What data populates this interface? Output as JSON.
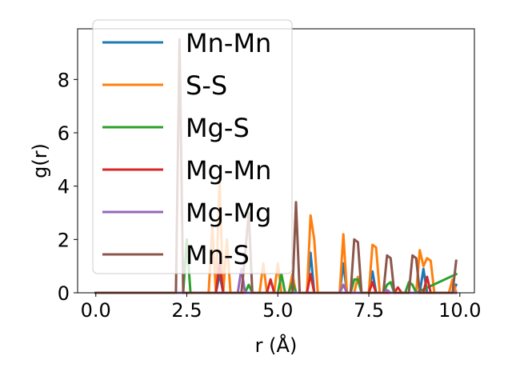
{
  "chart_data": {
    "type": "line",
    "title": "",
    "xlabel": "r (Å)",
    "ylabel": "g(r)",
    "xlim": [
      -0.5,
      10.4
    ],
    "ylim": [
      0,
      9.9
    ],
    "xticks": [
      0.0,
      2.5,
      5.0,
      7.5,
      10.0
    ],
    "xtick_labels": [
      "0.0",
      "2.5",
      "5.0",
      "7.5",
      "10.0"
    ],
    "yticks": [
      0,
      2,
      4,
      6,
      8
    ],
    "ytick_labels": [
      "0",
      "2",
      "4",
      "6",
      "8"
    ],
    "grid": false,
    "legend_position": "upper-left",
    "series": [
      {
        "name": "Mn-Mn",
        "color": "#1f77b4",
        "points": [
          [
            0,
            0
          ],
          [
            3.3,
            0
          ],
          [
            3.4,
            0.7
          ],
          [
            3.5,
            0
          ],
          [
            5.8,
            0
          ],
          [
            5.9,
            1.5
          ],
          [
            6.0,
            0
          ],
          [
            6.7,
            0
          ],
          [
            6.8,
            1.1
          ],
          [
            6.9,
            0
          ],
          [
            7.5,
            0
          ],
          [
            7.6,
            0.8
          ],
          [
            7.7,
            0
          ],
          [
            8.9,
            0
          ],
          [
            9.0,
            0.9
          ],
          [
            9.1,
            0
          ],
          [
            9.8,
            0
          ],
          [
            9.9,
            0.3
          ]
        ]
      },
      {
        "name": "S-S",
        "color": "#ff7f0e",
        "points": [
          [
            0,
            0
          ],
          [
            3.1,
            0
          ],
          [
            3.2,
            2.5
          ],
          [
            3.3,
            0
          ],
          [
            3.4,
            4.2
          ],
          [
            3.5,
            0
          ],
          [
            3.6,
            2.0
          ],
          [
            3.7,
            0
          ],
          [
            4.5,
            0
          ],
          [
            4.6,
            1.1
          ],
          [
            4.7,
            0
          ],
          [
            4.9,
            0
          ],
          [
            5.0,
            1.1
          ],
          [
            5.1,
            0
          ],
          [
            5.3,
            0
          ],
          [
            5.4,
            0.7
          ],
          [
            5.5,
            0
          ],
          [
            5.8,
            0
          ],
          [
            5.9,
            2.9
          ],
          [
            6.0,
            2.0
          ],
          [
            6.1,
            0
          ],
          [
            6.7,
            0
          ],
          [
            6.8,
            2.2
          ],
          [
            6.9,
            0
          ],
          [
            7.1,
            0
          ],
          [
            7.2,
            0.6
          ],
          [
            7.3,
            0
          ],
          [
            7.5,
            0
          ],
          [
            7.6,
            1.8
          ],
          [
            7.7,
            1.7
          ],
          [
            7.8,
            0
          ],
          [
            8.8,
            0
          ],
          [
            8.9,
            1.6
          ],
          [
            9.0,
            1.0
          ],
          [
            9.1,
            1.3
          ],
          [
            9.2,
            1.2
          ],
          [
            9.3,
            0
          ],
          [
            9.7,
            0
          ],
          [
            9.8,
            0.5
          ],
          [
            9.9,
            0
          ]
        ]
      },
      {
        "name": "Mg-S",
        "color": "#2ca02c",
        "points": [
          [
            0,
            0
          ],
          [
            2.4,
            0
          ],
          [
            2.5,
            2.0
          ],
          [
            2.6,
            0
          ],
          [
            4.1,
            0
          ],
          [
            4.2,
            0.3
          ],
          [
            4.3,
            0
          ],
          [
            5.0,
            0
          ],
          [
            5.1,
            0.7
          ],
          [
            5.2,
            0
          ],
          [
            5.3,
            0
          ],
          [
            5.4,
            0.4
          ],
          [
            5.5,
            0
          ],
          [
            6.4,
            0
          ],
          [
            6.5,
            0
          ],
          [
            7.0,
            0
          ],
          [
            7.1,
            0.5
          ],
          [
            7.2,
            0.5
          ],
          [
            7.3,
            0
          ],
          [
            7.9,
            0
          ],
          [
            8.0,
            0.3
          ],
          [
            8.1,
            0.4
          ],
          [
            8.2,
            0
          ],
          [
            8.5,
            0
          ],
          [
            8.6,
            0.4
          ],
          [
            8.7,
            0.3
          ],
          [
            8.8,
            0
          ],
          [
            9.9,
            0.7
          ]
        ]
      },
      {
        "name": "Mg-Mn",
        "color": "#d62728",
        "points": [
          [
            0,
            0
          ],
          [
            3.3,
            0
          ],
          [
            3.4,
            1.1
          ],
          [
            3.5,
            0
          ],
          [
            4.7,
            0
          ],
          [
            4.8,
            0.5
          ],
          [
            4.9,
            0
          ],
          [
            5.8,
            0
          ],
          [
            5.9,
            0.7
          ],
          [
            6.0,
            0
          ],
          [
            7.5,
            0
          ],
          [
            7.6,
            0.4
          ],
          [
            7.7,
            0
          ],
          [
            8.2,
            0
          ],
          [
            8.3,
            0.2
          ],
          [
            8.4,
            0
          ],
          [
            9.0,
            0
          ],
          [
            9.1,
            0.6
          ],
          [
            9.2,
            0
          ]
        ]
      },
      {
        "name": "Mg-Mg",
        "color": "#9467bd",
        "points": [
          [
            0,
            0
          ],
          [
            3.9,
            0
          ],
          [
            4.0,
            0.9
          ],
          [
            4.1,
            0
          ],
          [
            6.7,
            0
          ],
          [
            6.8,
            0.3
          ],
          [
            6.9,
            0
          ],
          [
            7.9,
            0
          ],
          [
            8.0,
            0.1
          ],
          [
            8.1,
            0
          ],
          [
            9.8,
            0
          ],
          [
            9.9,
            0
          ]
        ]
      },
      {
        "name": "Mn-S",
        "color": "#8c564b",
        "points": [
          [
            0,
            0
          ],
          [
            2.2,
            0
          ],
          [
            2.3,
            9.5
          ],
          [
            2.4,
            0
          ],
          [
            4.0,
            0
          ],
          [
            4.1,
            1.4
          ],
          [
            4.2,
            3.0
          ],
          [
            4.3,
            0
          ],
          [
            5.4,
            0
          ],
          [
            5.5,
            3.4
          ],
          [
            5.6,
            0
          ],
          [
            7.0,
            0
          ],
          [
            7.1,
            2.0
          ],
          [
            7.2,
            1.9
          ],
          [
            7.3,
            0
          ],
          [
            7.9,
            0
          ],
          [
            8.0,
            1.4
          ],
          [
            8.1,
            1.3
          ],
          [
            8.2,
            0
          ],
          [
            8.6,
            0
          ],
          [
            8.7,
            1.4
          ],
          [
            8.8,
            1.3
          ],
          [
            8.9,
            0
          ],
          [
            9.8,
            0
          ],
          [
            9.9,
            1.2
          ]
        ]
      }
    ]
  }
}
